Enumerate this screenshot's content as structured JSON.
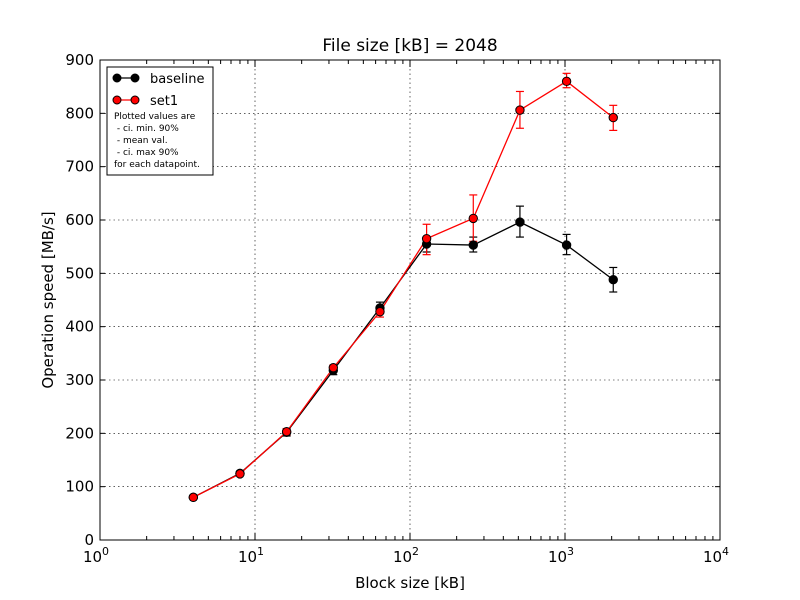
{
  "chart_data": {
    "type": "line",
    "title": "File size [kB] = 2048",
    "xlabel": "Block size [kB]",
    "ylabel": "Operation speed [MB/s]",
    "xscale": "log",
    "xlim": [
      1,
      10000
    ],
    "ylim": [
      0,
      900
    ],
    "xticks": [
      {
        "base": "10",
        "exp": "0"
      },
      {
        "base": "10",
        "exp": "1"
      },
      {
        "base": "10",
        "exp": "2"
      },
      {
        "base": "10",
        "exp": "3"
      },
      {
        "base": "10",
        "exp": "4"
      }
    ],
    "yticks": [
      "0",
      "100",
      "200",
      "300",
      "400",
      "500",
      "600",
      "700",
      "800",
      "900"
    ],
    "grid": true,
    "legend_position": "top-left",
    "legend_note": [
      "Plotted values are",
      " - ci. min. 90%",
      " - mean val.",
      " - ci. max 90%",
      "for each datapoint."
    ],
    "series": [
      {
        "name": "baseline",
        "color": "#000000",
        "x": [
          4,
          8,
          16,
          32,
          64,
          128,
          256,
          512,
          1024,
          2048
        ],
        "y": [
          80,
          125,
          202,
          318,
          435,
          555,
          553,
          596,
          553,
          488
        ],
        "y_low": [
          78,
          121,
          195,
          310,
          425,
          540,
          540,
          568,
          535,
          465
        ],
        "y_high": [
          82,
          129,
          208,
          325,
          446,
          568,
          568,
          626,
          573,
          511
        ]
      },
      {
        "name": "set1",
        "color": "#ff0000",
        "x": [
          4,
          8,
          16,
          32,
          64,
          128,
          256,
          512,
          1024,
          2048
        ],
        "y": [
          80,
          124,
          203,
          323,
          428,
          565,
          603,
          806,
          860,
          792
        ],
        "y_low": [
          78,
          121,
          197,
          316,
          418,
          535,
          560,
          772,
          848,
          768
        ],
        "y_high": [
          82,
          128,
          209,
          328,
          438,
          592,
          647,
          841,
          875,
          815
        ]
      }
    ]
  }
}
